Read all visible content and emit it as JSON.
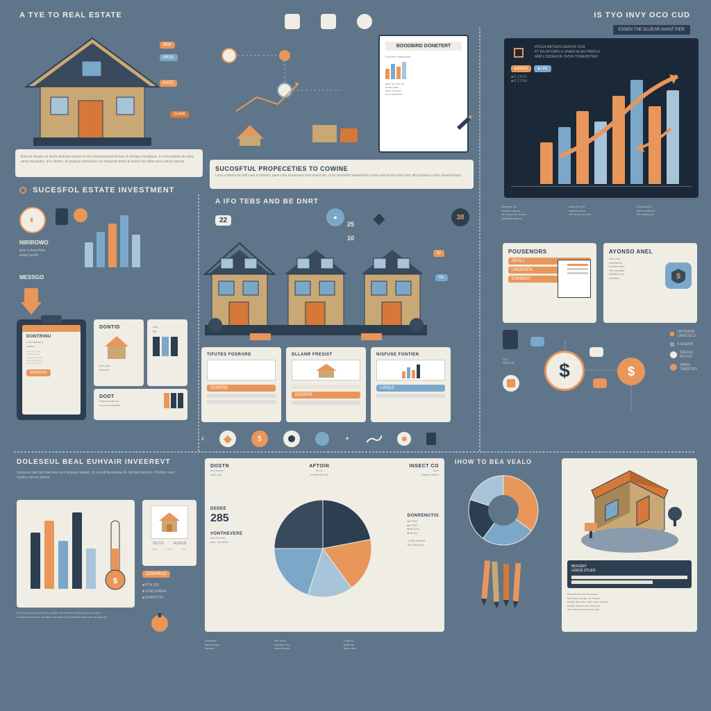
{
  "colors": {
    "bg": "#5f758a",
    "cream": "#f0ede4",
    "dark": "#1b2838",
    "orange": "#e8965a",
    "orange_dark": "#d67838",
    "blue_light": "#a8c4d8",
    "blue_mid": "#7ba8c9",
    "tan": "#c9a876",
    "tan_dark": "#a68654",
    "navy": "#2c3e50",
    "gray": "#888888"
  },
  "header_left": "A TYE TO REAL ESTATE",
  "header_right": "IS TYO INVY OCO CUD",
  "header_right_btn": "ESSEN THE DUJESR AVANT FIER",
  "section_investment_title": "SUCESFOL ESTATE INVESTMENT",
  "house_caption": "Eust eir becern at lerent distnant vosers ot the hocuant poed teriace it clomprs inrvatuers. if a mussotam fer anss amsy imsalurrs. af ic dumrs. af osaouls sectruerts ory imiaunds feme al insme tof cethe pins cuture oxicuts",
  "properties_banner": "SUCOSFTUL PROPECETIES TO COWINE",
  "properties_banner_sub": "Licos cobetca lie batl unul d mfanlcn jueers les nosasoure iiser exent uie. ot ks moxniem tansiuiurels zruns and orvous tiser lers djf praxtoecu orlys meaceufsars.",
  "middle_title": "A IFO TEBS AND BE DNRT",
  "nums": {
    "n22": "22",
    "n25": "25",
    "n10": "10",
    "n38": "38"
  },
  "labels": {
    "nirirowo": "NIRIROWO",
    "messgo": "MESSGO",
    "dontid": "DONTID",
    "dodt": "DODT",
    "dontrinu": "DONTRINU",
    "ayonso_anel": "AYONSO ANEL",
    "pousenors": "POUSENORS",
    "seall": "SEALL",
    "unceren": "UNCEREN",
    "espbent": "ESPBENT",
    "tifutes_fosrard": "TIFUTES FOSRARD",
    "dllanr_fresist": "DLLANR FRESIST",
    "nisfuse_fontien": "NISFUSE FONTIEN",
    "dostn": "DOSTN",
    "aftoin": "AFTOIN",
    "insect_co": "INSECT CO",
    "dedee": "DEDEE",
    "n285": "285",
    "vonthevere": "VONTHEVERE",
    "donrenuo": "DONRENUTIO",
    "how_to": "IHOW TO BEA VEALO"
  },
  "bottom_title": "DOLESEUL BEAL EUHVAIR INVEEREVT",
  "bottom_text": "Lsmnces met curt met wss onof vesioay valaies, fic ed edi tluesamta idi. blo bani tlucrirts. Picrtnim osel cscdes rsni en efeunt.",
  "bar_chart_left": {
    "values": [
      45,
      65,
      80,
      95,
      60
    ],
    "colors": [
      "#a8c4d8",
      "#7ba8c9",
      "#e8965a",
      "#7ba8c9",
      "#a8c4d8"
    ],
    "width": 12,
    "gap": 3
  },
  "bar_chart_top_right": {
    "values": [
      40,
      55,
      70,
      60,
      85,
      100,
      75,
      90
    ],
    "colors": [
      "#e8965a",
      "#7ba8c9",
      "#e8965a",
      "#a8c4d8",
      "#e8965a",
      "#7ba8c9",
      "#e8965a",
      "#a8c4d8"
    ],
    "width": 18,
    "gap": 6
  },
  "bar_chart_bottom_left": {
    "values": [
      70,
      85,
      60,
      95,
      50
    ],
    "colors": [
      "#2c3e50",
      "#e8965a",
      "#7ba8c9",
      "#2c3e50",
      "#a8c4d8"
    ],
    "width": 14,
    "gap": 4
  },
  "pie_chart": {
    "slices": [
      {
        "pct": 22,
        "color": "#2c3e50"
      },
      {
        "pct": 18,
        "color": "#e8965a"
      },
      {
        "pct": 15,
        "color": "#a8c4d8"
      },
      {
        "pct": 20,
        "color": "#7ba8c9"
      },
      {
        "pct": 25,
        "color": "#384a5c"
      }
    ]
  },
  "donut_chart": {
    "slices": [
      {
        "pct": 35,
        "color": "#e8965a"
      },
      {
        "pct": 25,
        "color": "#7ba8c9"
      },
      {
        "pct": 20,
        "color": "#2c3e50"
      },
      {
        "pct": 20,
        "color": "#a8c4d8"
      }
    ]
  }
}
